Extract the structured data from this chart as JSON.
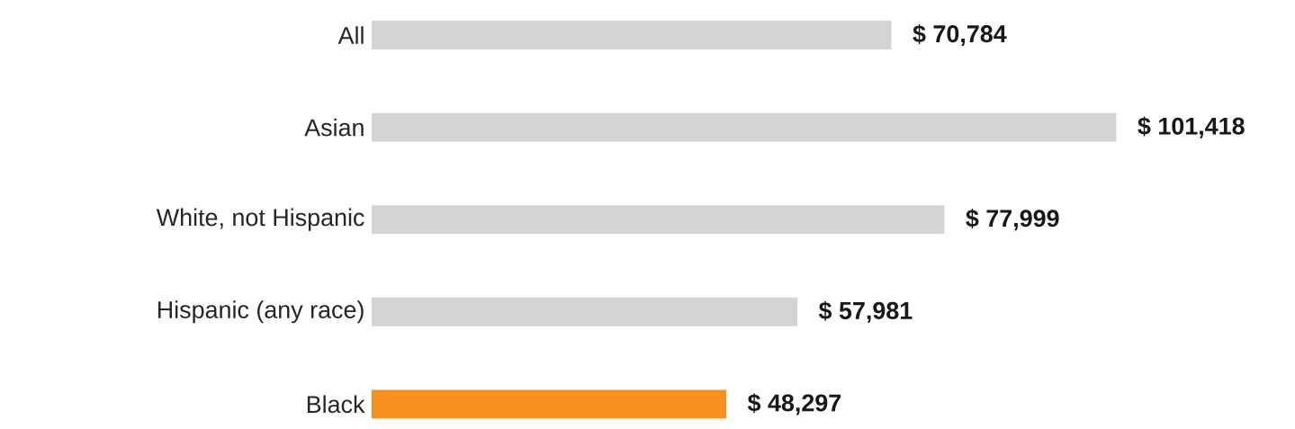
{
  "chart_data": {
    "type": "bar",
    "orientation": "horizontal",
    "categories": [
      "All",
      "Asian",
      "White, not Hispanic",
      "Hispanic (any race)",
      "Black"
    ],
    "values": [
      70784,
      101418,
      77999,
      57981,
      48297
    ],
    "colors": [
      "#d4d4d6",
      "#d4d4d6",
      "#d4d4d6",
      "#d4d4d6",
      "#f5901f"
    ],
    "value_labels": [
      "$ 70,784",
      "$ 101,418",
      "$ 77,999",
      "$ 57,981",
      "$ 48,297"
    ]
  }
}
